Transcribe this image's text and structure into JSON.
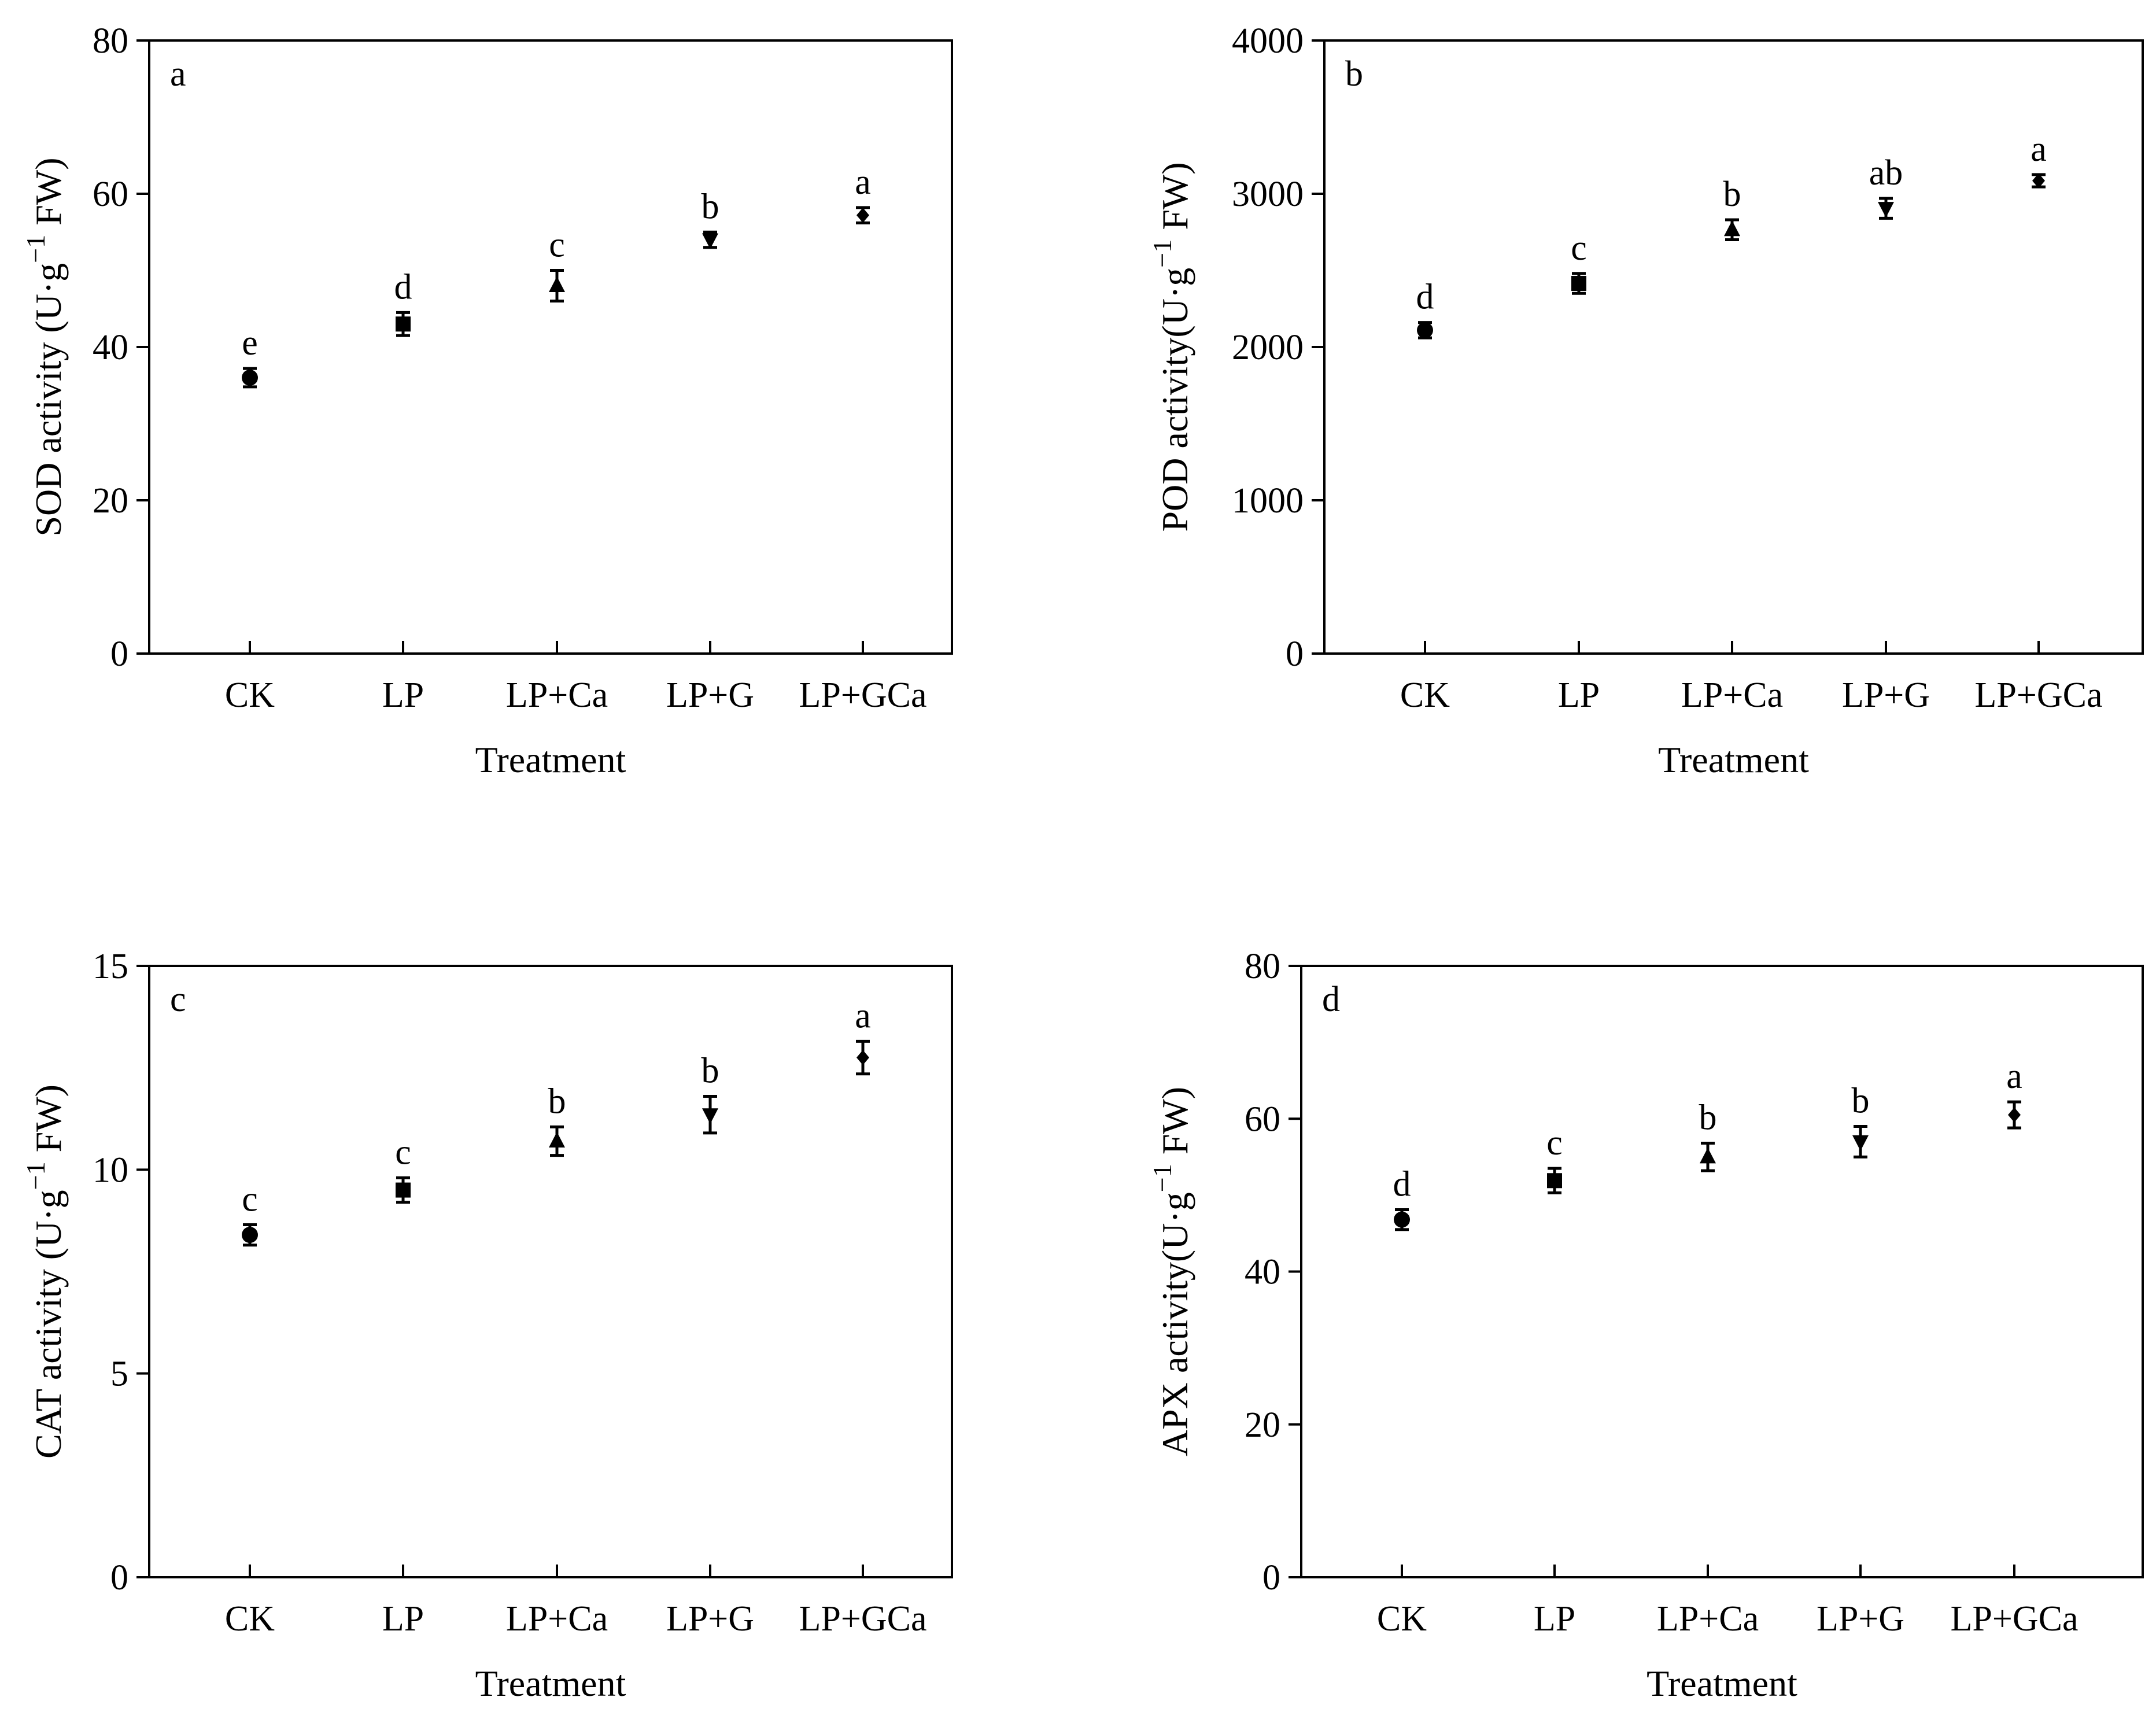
{
  "colors": {
    "ink": "#000000",
    "background": "#ffffff"
  },
  "chart_data": [
    {
      "type": "scatter",
      "panel": "a",
      "categories": [
        "CK",
        "LP",
        "LP+Ca",
        "LP+G",
        "LP+GCa"
      ],
      "xlabel": "Treatment",
      "ylabel": {
        "main": "SOD activity (U·g",
        "sup": "−1",
        "tail": " FW)"
      },
      "ylim": [
        0,
        80
      ],
      "yticks": [
        0,
        20,
        40,
        60,
        80
      ],
      "grid": false,
      "values": [
        36,
        43,
        48,
        54,
        57.2
      ],
      "errors": [
        1.2,
        1.5,
        2,
        1,
        1
      ],
      "significance": [
        "e",
        "d",
        "c",
        "b",
        "a"
      ],
      "markers": [
        "circle-icon",
        "square-icon",
        "triangle-up-icon",
        "triangle-down-icon",
        "diamond-icon"
      ]
    },
    {
      "type": "scatter",
      "panel": "b",
      "categories": [
        "CK",
        "LP",
        "LP+Ca",
        "LP+G",
        "LP+GCa"
      ],
      "xlabel": "Treatment",
      "ylabel": {
        "main": "POD activity(U·g",
        "sup": "−1",
        "tail": " FW)"
      },
      "ylim": [
        0,
        4000
      ],
      "yticks": [
        0,
        1000,
        2000,
        3000,
        4000
      ],
      "grid": false,
      "values": [
        2110,
        2415,
        2765,
        2905,
        3085
      ],
      "errors": [
        50,
        65,
        65,
        65,
        40
      ],
      "significance": [
        "d",
        "c",
        "b",
        "ab",
        "a"
      ],
      "markers": [
        "circle-icon",
        "square-icon",
        "triangle-up-icon",
        "triangle-down-icon",
        "diamond-icon"
      ]
    },
    {
      "type": "scatter",
      "panel": "c",
      "categories": [
        "CK",
        "LP",
        "LP+Ca",
        "LP+G",
        "LP+GCa"
      ],
      "xlabel": "Treatment",
      "ylabel": {
        "main": "CAT activity (U·g",
        "sup": "−1",
        "tail": " FW)"
      },
      "ylim": [
        0,
        15
      ],
      "yticks": [
        0,
        5,
        10,
        15
      ],
      "grid": false,
      "values": [
        8.4,
        9.5,
        10.7,
        11.35,
        12.75
      ],
      "errors": [
        0.25,
        0.3,
        0.35,
        0.45,
        0.4
      ],
      "significance": [
        "c",
        "c",
        "b",
        "b",
        "a"
      ],
      "markers": [
        "circle-icon",
        "square-icon",
        "triangle-up-icon",
        "triangle-down-icon",
        "diamond-icon"
      ]
    },
    {
      "type": "scatter",
      "panel": "d",
      "categories": [
        "CK",
        "LP",
        "LP+Ca",
        "LP+G",
        "LP+GCa"
      ],
      "xlabel": "Treatment",
      "ylabel": {
        "main": "APX activity(U·g",
        "sup": "−1",
        "tail": " FW)"
      },
      "ylim": [
        0,
        80
      ],
      "yticks": [
        0,
        20,
        40,
        60,
        80
      ],
      "grid": false,
      "values": [
        46.8,
        51.9,
        55,
        57,
        60.5
      ],
      "errors": [
        1.3,
        1.6,
        1.8,
        2,
        1.7
      ],
      "significance": [
        "d",
        "c",
        "b",
        "b",
        "a"
      ],
      "markers": [
        "circle-icon",
        "square-icon",
        "triangle-up-icon",
        "triangle-down-icon",
        "diamond-icon"
      ]
    }
  ]
}
